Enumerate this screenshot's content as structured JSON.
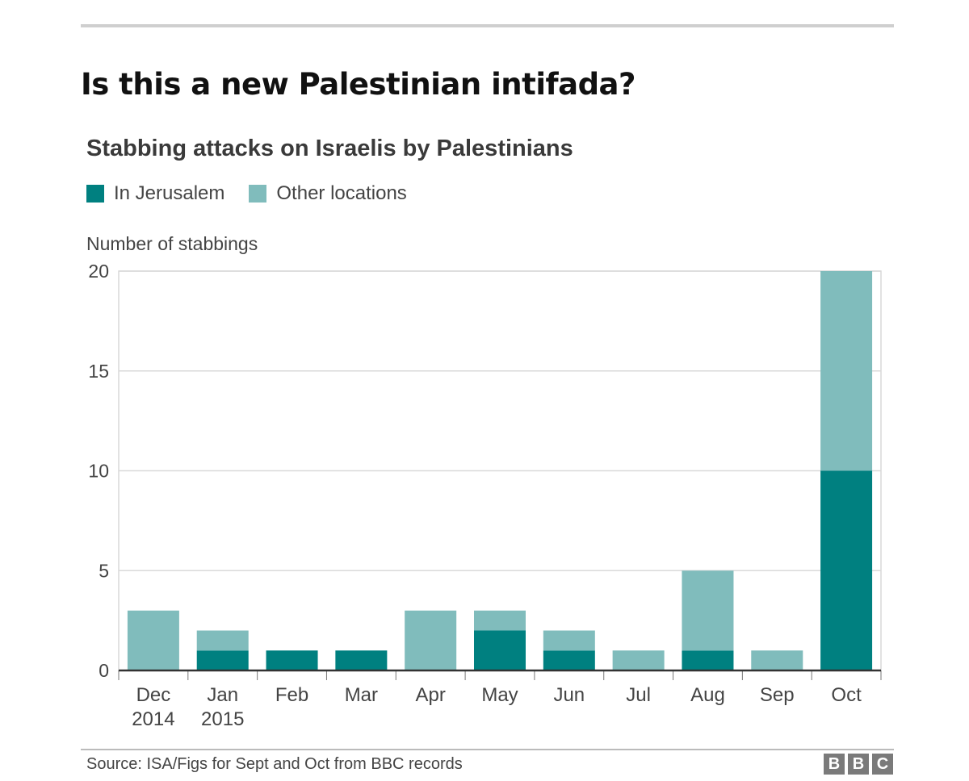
{
  "headline": "Is this a new Palestinian intifada?",
  "chart_data": {
    "type": "bar",
    "stacked": true,
    "title": "Stabbing attacks on Israelis by Palestinians",
    "ylabel": "Number of stabbings",
    "xlabel": "",
    "ylim": [
      0,
      20
    ],
    "yticks": [
      "0",
      "5",
      "10",
      "15",
      "20"
    ],
    "ytick_values": [
      0,
      5,
      10,
      15,
      20
    ],
    "grid": true,
    "legend_position": "top-left",
    "categories": [
      {
        "line1": "Dec",
        "line2": "2014"
      },
      {
        "line1": "Jan",
        "line2": "2015"
      },
      {
        "line1": "Feb",
        "line2": ""
      },
      {
        "line1": "Mar",
        "line2": ""
      },
      {
        "line1": "Apr",
        "line2": ""
      },
      {
        "line1": "May",
        "line2": ""
      },
      {
        "line1": "Jun",
        "line2": ""
      },
      {
        "line1": "Jul",
        "line2": ""
      },
      {
        "line1": "Aug",
        "line2": ""
      },
      {
        "line1": "Sep",
        "line2": ""
      },
      {
        "line1": "Oct",
        "line2": ""
      }
    ],
    "series": [
      {
        "name": "In Jerusalem",
        "color": "#008080",
        "values": [
          0,
          1,
          1,
          1,
          0,
          2,
          1,
          0,
          1,
          0,
          10
        ]
      },
      {
        "name": "Other locations",
        "color": "#80bcbc",
        "values": [
          3,
          1,
          0,
          0,
          3,
          1,
          1,
          1,
          4,
          1,
          10
        ]
      }
    ]
  },
  "source": "Source: ISA/Figs for Sept and Oct from BBC records",
  "logo": [
    "B",
    "B",
    "C"
  ],
  "colors": {
    "grid": "#d9d9d9",
    "axis": "#333333"
  }
}
